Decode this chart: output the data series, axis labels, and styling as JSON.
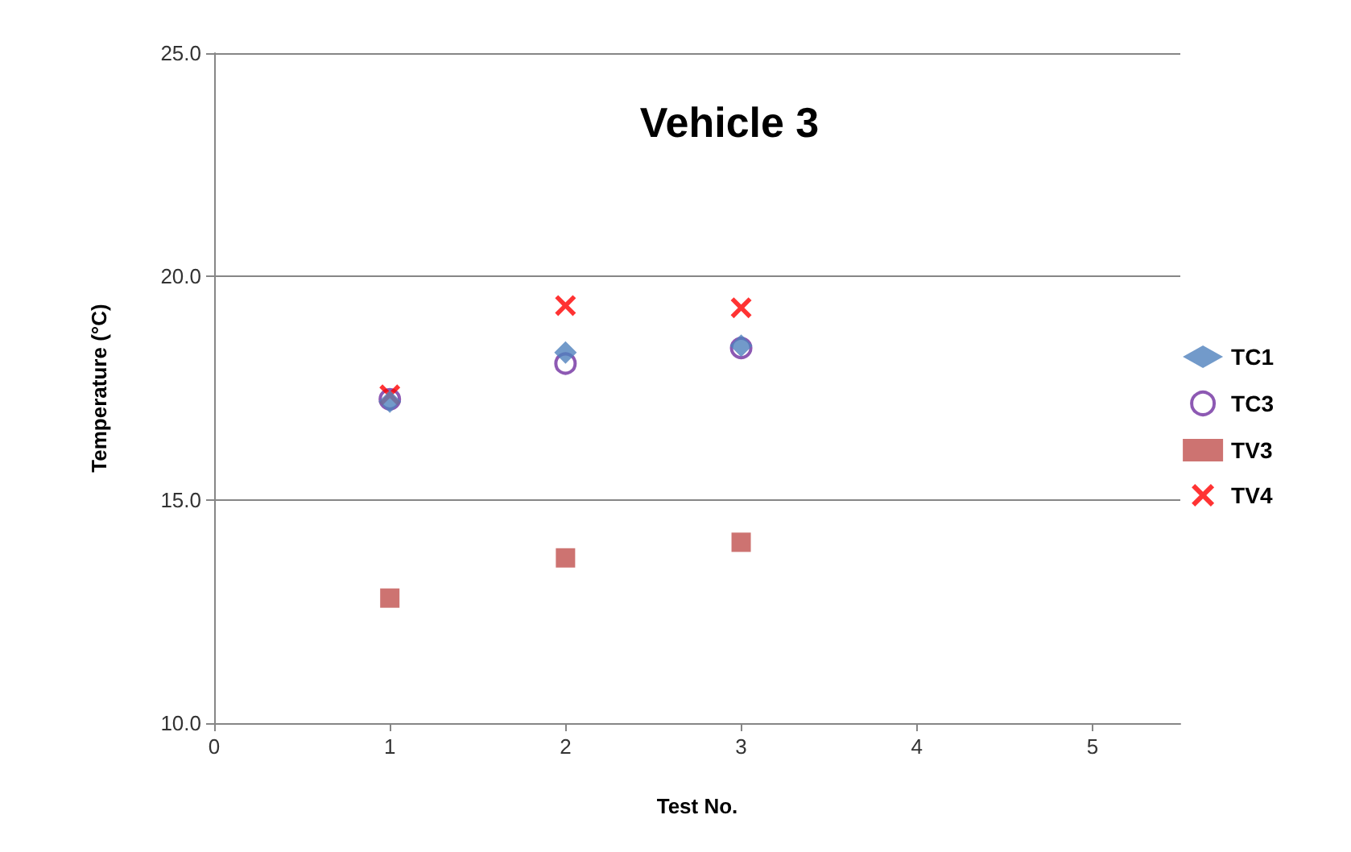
{
  "chart_data": {
    "type": "scatter",
    "title": "Vehicle 3",
    "xlabel": "Test No.",
    "ylabel": "Temperature (°C)",
    "x": [
      1,
      2,
      3
    ],
    "series": [
      {
        "name": "TC1",
        "color": "#4f81bd",
        "marker": "diamond",
        "values": [
          17.2,
          18.3,
          18.45
        ]
      },
      {
        "name": "TC3",
        "color": "#7030a0",
        "marker": "circle",
        "values": [
          17.25,
          18.05,
          18.4
        ]
      },
      {
        "name": "TV3",
        "color": "#c0504d",
        "marker": "square",
        "values": [
          12.8,
          13.7,
          14.05
        ]
      },
      {
        "name": "TV4",
        "color": "#ff0000",
        "marker": "cross",
        "values": [
          17.35,
          19.35,
          19.3
        ]
      }
    ],
    "xlim": [
      0,
      5.5
    ],
    "xticks": [
      0,
      1,
      2,
      3,
      4,
      5
    ],
    "ylim": [
      10,
      25
    ],
    "yticks": [
      {
        "value": 10,
        "label": "10.0"
      },
      {
        "value": 15,
        "label": "15.0"
      },
      {
        "value": 20,
        "label": "20.0"
      },
      {
        "value": 25,
        "label": "25.0"
      }
    ],
    "grid": "y",
    "legend": "right"
  }
}
